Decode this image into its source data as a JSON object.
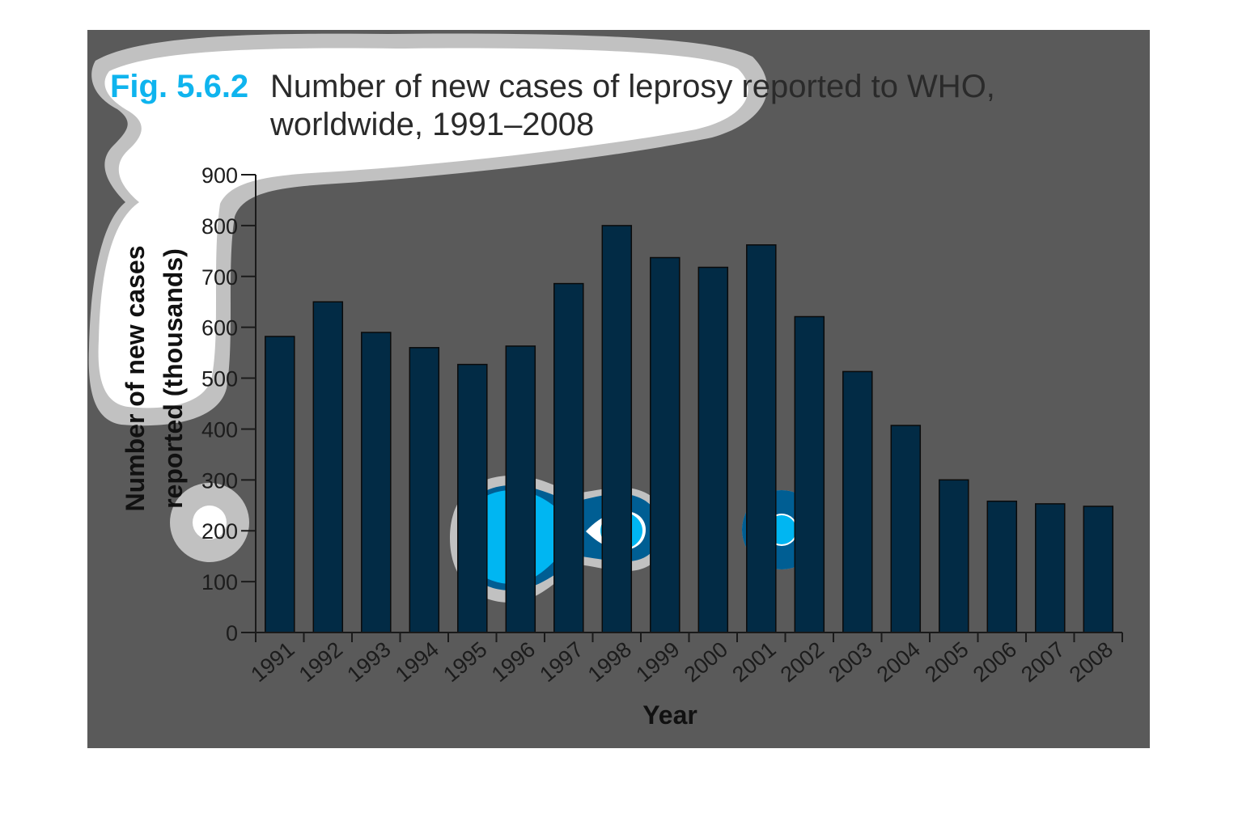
{
  "figure": {
    "label": "Fig. 5.6.2",
    "title_line1": "Number of new cases of leprosy reported to WHO,",
    "title_line2": "worldwide, 1991–2008"
  },
  "colors": {
    "panel": "#5a5a5a",
    "bar": "#022b45",
    "bar_stroke": "#0a0a0a",
    "accent": "#0fb4ee",
    "blob_mid": "#005e93",
    "blob_light": "#00b6f2",
    "blob_outer": "#c1c1c1",
    "axis": "#1a1a1a"
  },
  "chart_data": {
    "type": "bar",
    "categories": [
      "1991",
      "1992",
      "1993",
      "1994",
      "1995",
      "1996",
      "1997",
      "1998",
      "1999",
      "2000",
      "2001",
      "2002",
      "2003",
      "2004",
      "2005",
      "2006",
      "2007",
      "2008"
    ],
    "values": [
      582,
      650,
      590,
      560,
      527,
      563,
      686,
      800,
      737,
      718,
      762,
      621,
      513,
      407,
      300,
      258,
      253,
      248
    ],
    "xlabel": "Year",
    "ylabel_line1": "Number of new cases",
    "ylabel_line2": "reported (thousands)",
    "ylim": [
      0,
      900
    ],
    "yticks": [
      0,
      100,
      200,
      300,
      400,
      500,
      600,
      700,
      800,
      900
    ],
    "grid": false,
    "legend": "none"
  }
}
